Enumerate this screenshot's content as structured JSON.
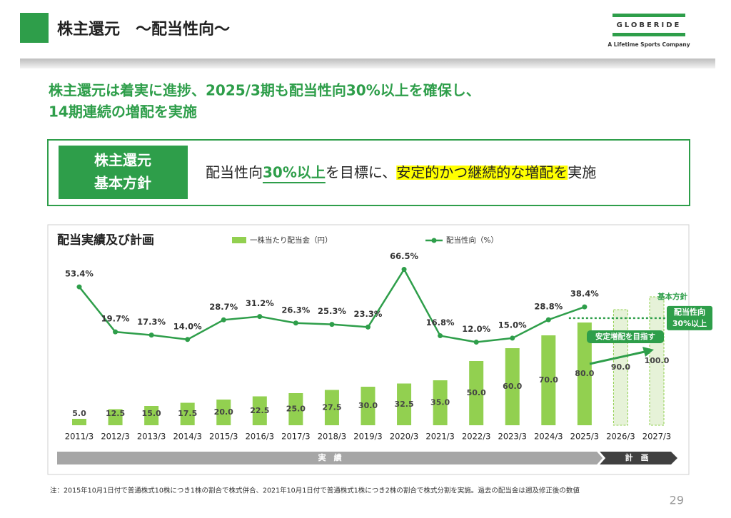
{
  "header": {
    "title": "株主還元　～配当性向～",
    "logo": "GLOBERIDE",
    "tagline": "A Lifetime Sports Company"
  },
  "headline": [
    "株主還元は着実に進捗、2025/3期も配当性向30%以上を確保し、",
    "14期連続の増配を実施"
  ],
  "policy": {
    "label": [
      "株主還元",
      "基本方針"
    ],
    "text_parts": [
      "配当性向",
      "30%以上",
      "を目標に、",
      "安定的かつ継続的な増配を",
      "実施"
    ]
  },
  "chart_data": {
    "type": "bar_line",
    "title": "配当実績及び計画",
    "categories": [
      "2011/3",
      "2012/3",
      "2013/3",
      "2014/3",
      "2015/3",
      "2016/3",
      "2017/3",
      "2018/3",
      "2019/3",
      "2020/3",
      "2021/3",
      "2022/3",
      "2023/3",
      "2024/3",
      "2025/3",
      "2026/3",
      "2027/3"
    ],
    "ylim": [
      0,
      120
    ],
    "y2lim": [
      0,
      70
    ],
    "series": [
      {
        "name": "一株当たり配当金（円）",
        "color": "#92d050",
        "values": [
          5.0,
          12.5,
          15.0,
          17.5,
          20.0,
          22.5,
          25.0,
          27.5,
          30.0,
          32.5,
          35.0,
          50.0,
          60.0,
          70.0,
          80.0,
          90.0,
          100.0
        ],
        "value_labels": [
          "5.0",
          "12.5",
          "15.0",
          "17.5",
          "20.0",
          "22.5",
          "25.0",
          "27.5",
          "30.0",
          "32.5",
          "35.0",
          "50.0",
          "60.0",
          "70.0",
          "80.0",
          "90.0",
          "100.0"
        ]
      },
      {
        "name": "配当性向（%）",
        "color": "#2e9e4a",
        "axis": "y2",
        "values": [
          53.4,
          19.7,
          17.3,
          14.0,
          28.7,
          31.2,
          26.3,
          25.3,
          23.3,
          66.5,
          16.8,
          12.0,
          15.0,
          28.8,
          38.4,
          null,
          null
        ],
        "value_labels": [
          "53.4%",
          "19.7%",
          "17.3%",
          "14.0%",
          "28.7%",
          "31.2%",
          "26.3%",
          "25.3%",
          "23.3%",
          "66.5%",
          "16.8%",
          "12.0%",
          "15.0%",
          "28.8%",
          "38.4%",
          null,
          null
        ]
      }
    ],
    "periods": [
      "実　績",
      "計　画"
    ],
    "annotations": {
      "policy_label": "基本方針",
      "target": {
        "value": 30,
        "lines": [
          "配当性向",
          "30%以上"
        ]
      },
      "growth": "安定増配を目指す"
    }
  },
  "footnote": "注：2015年10月1日付で普通株式10株につき1株の割合で株式併合、2021年10月1日付で普通株式1株につき2株の割合で株式分割を実施。過去の配当金は遡及修正後の数値",
  "page_number": "29"
}
